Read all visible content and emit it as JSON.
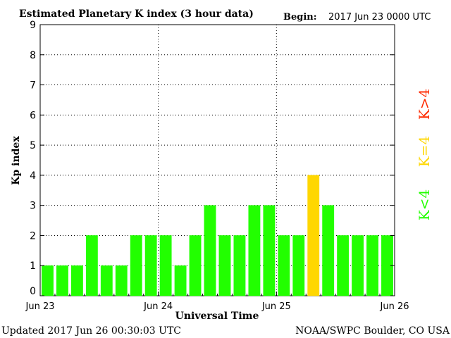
{
  "header": {
    "title": "Estimated Planetary K index (3 hour data)",
    "begin_label": "Begin:",
    "begin_value": "2017 Jun 23 0000 UTC"
  },
  "footer": {
    "updated": "Updated 2017 Jun 26 00:30:03 UTC",
    "source": "NOAA/SWPC Boulder, CO USA"
  },
  "legend": {
    "above": "K>4",
    "equal": "K=4",
    "below": "K<4"
  },
  "colors": {
    "below": "#22ff00",
    "equal": "#ffd700",
    "above": "#ff2a00",
    "bar_edge": "#1a8f00"
  },
  "chart_data": {
    "type": "bar",
    "title": "Estimated Planetary K index (3 hour data)",
    "xlabel": "Universal Time",
    "ylabel": "Kp index",
    "ylim": [
      0,
      9
    ],
    "y_ticks": [
      0,
      1,
      2,
      3,
      4,
      5,
      6,
      7,
      8,
      9
    ],
    "x_tick_labels": [
      "Jun 23",
      "Jun 24",
      "Jun 25",
      "Jun 26"
    ],
    "interval_hours": 3,
    "grid": true,
    "values": [
      1,
      1,
      1,
      2,
      1,
      1,
      2,
      2,
      2,
      1,
      2,
      3,
      2,
      2,
      3,
      3,
      2,
      2,
      4,
      3,
      2,
      2,
      2,
      2
    ]
  }
}
